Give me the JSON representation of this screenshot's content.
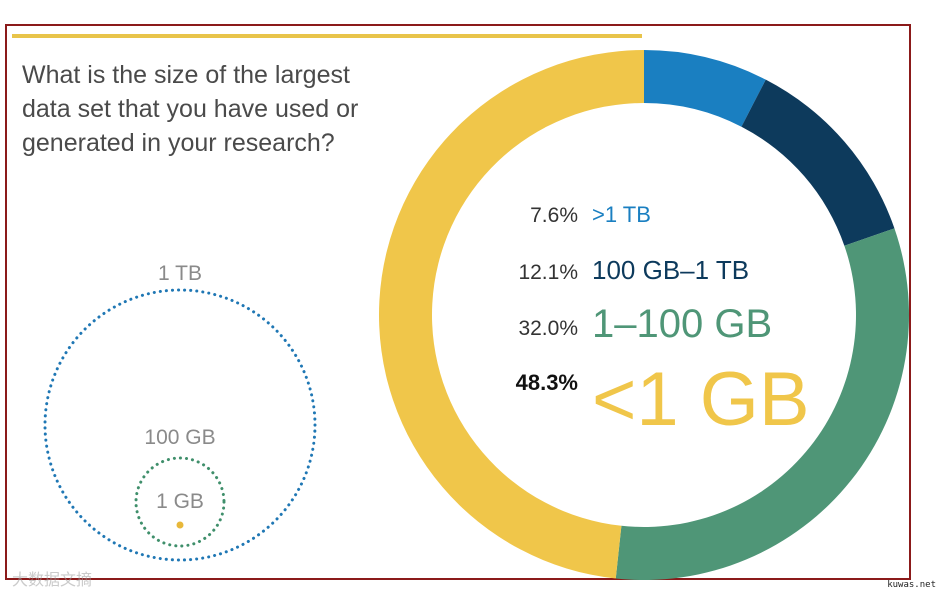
{
  "question": "What is the size of the largest\ndata set that you have used or\ngenerated in your research?",
  "size_diagram": {
    "outer_label": "1 TB",
    "middle_label": "100 GB",
    "inner_label": "1 GB",
    "outer_color": "#1f77b4",
    "middle_color": "#3f8f6b",
    "dot_color": "#e8b83a"
  },
  "chart_data": {
    "type": "pie",
    "donut": true,
    "start_angle_deg": 0,
    "direction": "clockwise",
    "slices": [
      {
        "label": ">1 TB",
        "pct_label": "7.6%",
        "value": 7.6,
        "color": "#1a7fc1"
      },
      {
        "label": "100 GB–1 TB",
        "pct_label": "12.1%",
        "value": 12.1,
        "color": "#0d3a5c"
      },
      {
        "label": "1–100 GB",
        "pct_label": "32.0%",
        "value": 32.0,
        "color": "#4f9677"
      },
      {
        "label": "<1 GB",
        "pct_label": "48.3%",
        "value": 48.3,
        "color": "#f0c64a"
      }
    ]
  },
  "watermark": "大数据文摘",
  "stamp": "kuwas.net"
}
